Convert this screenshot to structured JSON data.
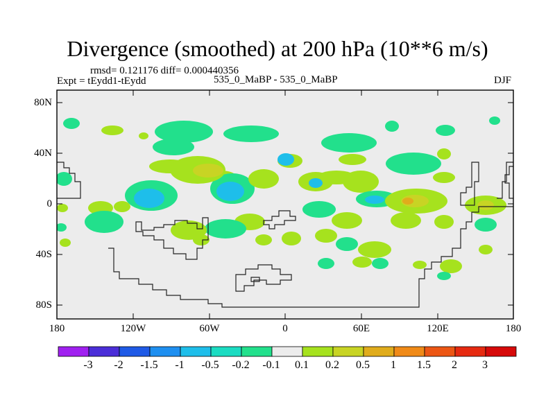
{
  "title": "Divergence (smoothed) at 200 hPa (10**6 m/s)",
  "stats": "rmsd= 0.121176 diff= 0.000440356",
  "experiment": "Expt = tEydd1-tEydd",
  "comparison": "535_0_MaBP - 535_0_MaBP",
  "season": "DJF",
  "lat_labels": [
    "80N",
    "40N",
    "0",
    "40S",
    "80S"
  ],
  "lon_labels": [
    "180",
    "120W",
    "60W",
    "0",
    "60E",
    "120E",
    "180"
  ],
  "colorbar": {
    "labels": [
      "-3",
      "-2",
      "-1.5",
      "-1",
      "-0.5",
      "-0.2",
      "-0.1",
      "0.1",
      "0.2",
      "0.5",
      "1",
      "1.5",
      "2",
      "3"
    ],
    "colors": [
      "#a020f0",
      "#4b2ed8",
      "#1f5ae6",
      "#1e8ff0",
      "#1ebeea",
      "#1bdcc2",
      "#22e08c",
      "#ececec",
      "#a6e21e",
      "#c8d424",
      "#e0ac1c",
      "#f08a18",
      "#ec5614",
      "#e62a10",
      "#d60a0a"
    ]
  },
  "icons": {
    "colorbar": "colorbar-legend-icon",
    "map": "world-map-icon"
  },
  "map_data": {
    "field": "200 hPa divergence difference",
    "units": "10**6 m/s",
    "lon_range": [
      -180,
      180
    ],
    "lat_range": [
      -90,
      90
    ],
    "background_color": "#ececec",
    "coast_color": "#222222"
  }
}
